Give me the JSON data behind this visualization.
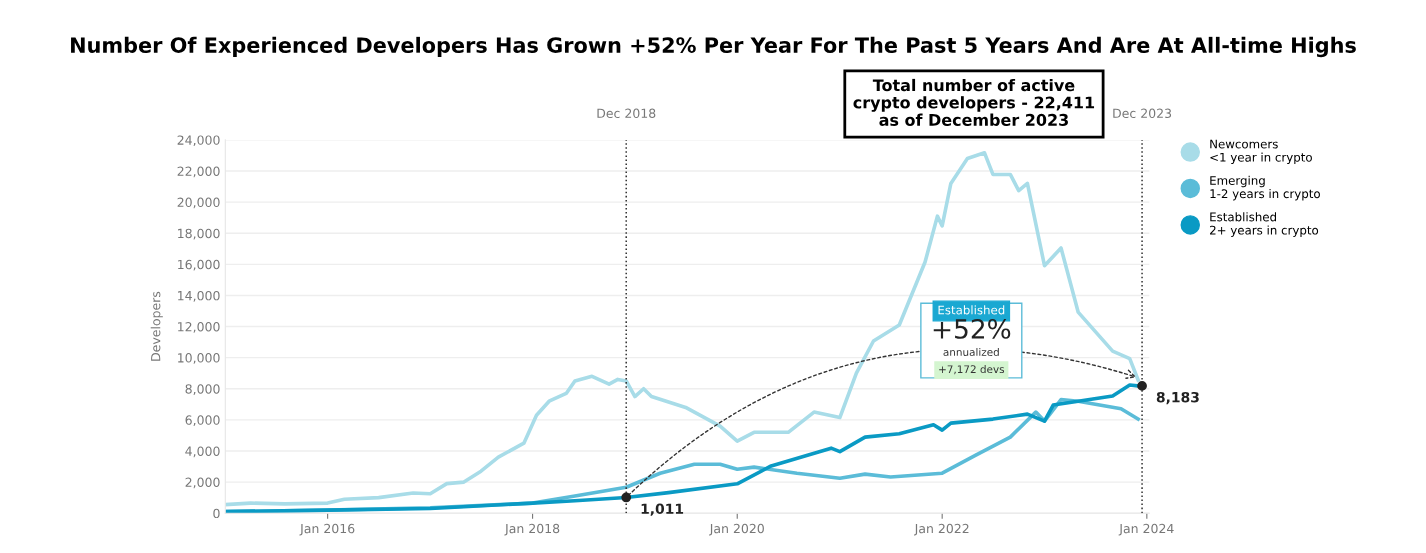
{
  "chart_data": {
    "type": "line",
    "title": "Number Of Experienced Developers Has Grown +52% Per Year For The Past 5 Years And Are At All-time Highs",
    "ylabel": "Developers",
    "series": [
      {
        "name": "Newcomers\n<1 year in crypto",
        "color": "#a8dce8",
        "x": [
          "2015-01-01",
          "2015-04-01",
          "2015-08-01",
          "2016-01-01",
          "2016-03-01",
          "2016-07-01",
          "2016-11-01",
          "2017-01-01",
          "2017-03-01",
          "2017-05-01",
          "2017-07-01",
          "2017-09-01",
          "2017-12-01",
          "2018-01-15",
          "2018-03-01",
          "2018-05-01",
          "2018-06-01",
          "2018-08-01",
          "2018-10-01",
          "2018-11-01",
          "2018-12-01",
          "2019-01-01",
          "2019-02-01",
          "2019-03-01",
          "2019-07-01",
          "2019-11-01",
          "2020-01-01",
          "2020-03-01",
          "2020-07-01",
          "2020-10-01",
          "2021-01-01",
          "2021-03-01",
          "2021-05-01",
          "2021-08-01",
          "2021-11-01",
          "2021-12-15",
          "2022-01-01",
          "2022-02-01",
          "2022-04-01",
          "2022-06-01",
          "2022-07-01",
          "2022-09-01",
          "2022-10-01",
          "2022-11-01",
          "2023-01-01",
          "2023-03-01",
          "2023-05-01",
          "2023-09-01",
          "2023-11-01",
          "2023-12-01"
        ],
        "values": [
          550,
          650,
          600,
          650,
          900,
          1000,
          1300,
          1250,
          1900,
          2000,
          2700,
          3600,
          4500,
          6300,
          7200,
          7700,
          8500,
          8800,
          8300,
          8600,
          8500,
          7500,
          8000,
          7500,
          6800,
          5600,
          4630,
          5200,
          5200,
          6500,
          6150,
          9000,
          11070,
          12100,
          16150,
          19100,
          18470,
          21200,
          22800,
          23170,
          21780,
          21780,
          20740,
          21200,
          15910,
          17050,
          12930,
          10420,
          9940,
          8560
        ]
      },
      {
        "name": "Emerging\n1-2 years in crypto",
        "color": "#5bbcd8",
        "x": [
          "2015-01-01",
          "2016-01-01",
          "2017-01-01",
          "2018-01-01",
          "2018-06-01",
          "2018-12-01",
          "2019-04-01",
          "2019-08-01",
          "2019-11-01",
          "2020-01-01",
          "2020-03-01",
          "2020-08-01",
          "2021-01-01",
          "2021-04-01",
          "2021-07-01",
          "2022-01-01",
          "2022-05-01",
          "2022-09-01",
          "2022-12-01",
          "2023-01-01",
          "2023-03-01",
          "2023-05-01",
          "2023-10-01",
          "2023-12-01"
        ],
        "values": [
          100,
          200,
          350,
          650,
          1100,
          1670,
          2570,
          3150,
          3150,
          2830,
          2960,
          2570,
          2250,
          2510,
          2330,
          2570,
          3730,
          4890,
          6500,
          5920,
          7300,
          7200,
          6720,
          6050
        ]
      },
      {
        "name": "Established\n2+ years in crypto",
        "color": "#0a9ac4",
        "x": [
          "2015-01-01",
          "2016-01-01",
          "2017-01-01",
          "2018-01-01",
          "2018-06-01",
          "2018-12-01",
          "2019-05-01",
          "2020-01-01",
          "2020-05-01",
          "2020-12-01",
          "2021-01-01",
          "2021-04-01",
          "2021-08-01",
          "2021-12-01",
          "2022-01-01",
          "2022-02-01",
          "2022-07-01",
          "2022-11-01",
          "2023-01-01",
          "2023-02-01",
          "2023-05-01",
          "2023-09-01",
          "2023-11-01",
          "2023-12-01"
        ],
        "values": [
          100,
          200,
          300,
          650,
          800,
          1011,
          1320,
          1890,
          3040,
          4180,
          3960,
          4890,
          5110,
          5690,
          5340,
          5790,
          6050,
          6370,
          5920,
          6950,
          7200,
          7530,
          8240,
          8183
        ]
      }
    ],
    "xlim": [
      "2015-01-01",
      "2024-01-10"
    ],
    "xticks": [
      {
        "value": "2016-01-01",
        "label": "Jan 2016"
      },
      {
        "value": "2018-01-01",
        "label": "Jan 2018"
      },
      {
        "value": "2020-01-01",
        "label": "Jan 2020"
      },
      {
        "value": "2022-01-01",
        "label": "Jan 2022"
      },
      {
        "value": "2024-01-01",
        "label": "Jan 2024"
      }
    ],
    "ylim": [
      0,
      24000
    ],
    "yticks": [
      {
        "value": 0,
        "label": "0"
      },
      {
        "value": 2000,
        "label": "2,000"
      },
      {
        "value": 4000,
        "label": "4,000"
      },
      {
        "value": 6000,
        "label": "6,000"
      },
      {
        "value": 8000,
        "label": "8,000"
      },
      {
        "value": 10000,
        "label": "10,000"
      },
      {
        "value": 12000,
        "label": "12,000"
      },
      {
        "value": 14000,
        "label": "14,000"
      },
      {
        "value": 16000,
        "label": "16,000"
      },
      {
        "value": 18000,
        "label": "18,000"
      },
      {
        "value": 20000,
        "label": "20,000"
      },
      {
        "value": 22000,
        "label": "22,000"
      },
      {
        "value": 24000,
        "label": "24,000"
      }
    ],
    "ref_lines": [
      {
        "axis": "x",
        "value": "2018-12-01",
        "label": "Dec 2018",
        "color": "#333333",
        "line_style": "dotted"
      },
      {
        "axis": "x",
        "value": "2023-12-15",
        "label": "Dec 2023",
        "color": "#333333",
        "line_style": "dotted"
      }
    ],
    "annotations": [
      "Total number of active\ncrypto developers - 22,411\nas of December 2023",
      "Established",
      "+52%",
      "annualized",
      "+7,172 devs",
      {
        "text": "1,011",
        "x": "2018-12-01",
        "y": 1011
      },
      {
        "text": "8,183",
        "x": "2023-12-15",
        "y": 8183
      }
    ],
    "grid": "y",
    "legend": "top right",
    "marker": "none",
    "line_style": "solid"
  }
}
